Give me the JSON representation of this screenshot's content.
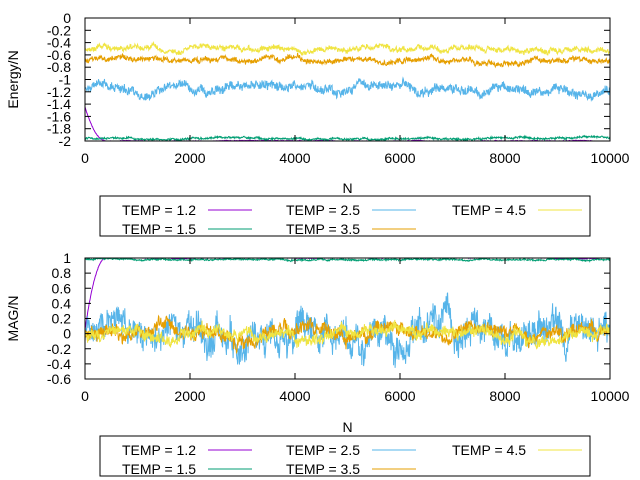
{
  "chart_data": [
    {
      "type": "line",
      "xlabel": "N",
      "ylabel": "Energy/N",
      "xlim": [
        0,
        10000
      ],
      "ylim": [
        -2,
        0
      ],
      "xticks": [
        0,
        2000,
        4000,
        6000,
        8000,
        10000
      ],
      "yticks": [
        0,
        -0.2,
        -0.4,
        -0.6,
        -0.8,
        -1,
        -1.2,
        -1.4,
        -1.6,
        -1.8,
        -2
      ],
      "grid": false,
      "legend_position": "below",
      "series": [
        {
          "name": "TEMP = 1.2",
          "color": "#9400d3",
          "x_start": 0,
          "x_end": 10000,
          "start_value": -1.45,
          "end_value": -2.0,
          "relax_until": 400,
          "noise": 0.005
        },
        {
          "name": "TEMP = 1.5",
          "color": "#009e73",
          "x_start": 0,
          "x_end": 10000,
          "start_value": -1.96,
          "end_value": -1.96,
          "relax_until": 0,
          "noise": 0.012
        },
        {
          "name": "TEMP = 2.5",
          "color": "#56b4e9",
          "x_start": 0,
          "x_end": 10000,
          "start_value": -1.15,
          "end_value": -1.15,
          "relax_until": 0,
          "noise": 0.06
        },
        {
          "name": "TEMP = 3.5",
          "color": "#e69f00",
          "x_start": 0,
          "x_end": 10000,
          "start_value": -0.68,
          "end_value": -0.68,
          "relax_until": 0,
          "noise": 0.035
        },
        {
          "name": "TEMP = 4.5",
          "color": "#f0e442",
          "x_start": 0,
          "x_end": 10000,
          "start_value": -0.5,
          "end_value": -0.5,
          "relax_until": 0,
          "noise": 0.035
        }
      ]
    },
    {
      "type": "line",
      "xlabel": "N",
      "ylabel": "MAG/N",
      "xlim": [
        0,
        10000
      ],
      "ylim": [
        -0.6,
        1
      ],
      "xticks": [
        0,
        2000,
        4000,
        6000,
        8000,
        10000
      ],
      "yticks": [
        1,
        0.8,
        0.6,
        0.4,
        0.2,
        0,
        -0.2,
        -0.4,
        -0.6
      ],
      "grid": false,
      "legend_position": "below",
      "series": [
        {
          "name": "TEMP = 1.2",
          "color": "#9400d3",
          "x_start": 0,
          "x_end": 10000,
          "start_value": 0.05,
          "end_value": 1.0,
          "relax_until": 400,
          "noise": 0.004
        },
        {
          "name": "TEMP = 1.5",
          "color": "#009e73",
          "x_start": 0,
          "x_end": 10000,
          "start_value": 0.98,
          "end_value": 0.98,
          "relax_until": 0,
          "noise": 0.008
        },
        {
          "name": "TEMP = 2.5",
          "color": "#56b4e9",
          "x_start": 0,
          "x_end": 10000,
          "start_value": 0.0,
          "end_value": 0.0,
          "relax_until": 0,
          "noise": 0.16
        },
        {
          "name": "TEMP = 3.5",
          "color": "#e69f00",
          "x_start": 0,
          "x_end": 10000,
          "start_value": 0.0,
          "end_value": 0.0,
          "relax_until": 0,
          "noise": 0.07
        },
        {
          "name": "TEMP = 4.5",
          "color": "#f0e442",
          "x_start": 0,
          "x_end": 10000,
          "start_value": 0.0,
          "end_value": 0.0,
          "relax_until": 0,
          "noise": 0.06
        }
      ]
    }
  ]
}
